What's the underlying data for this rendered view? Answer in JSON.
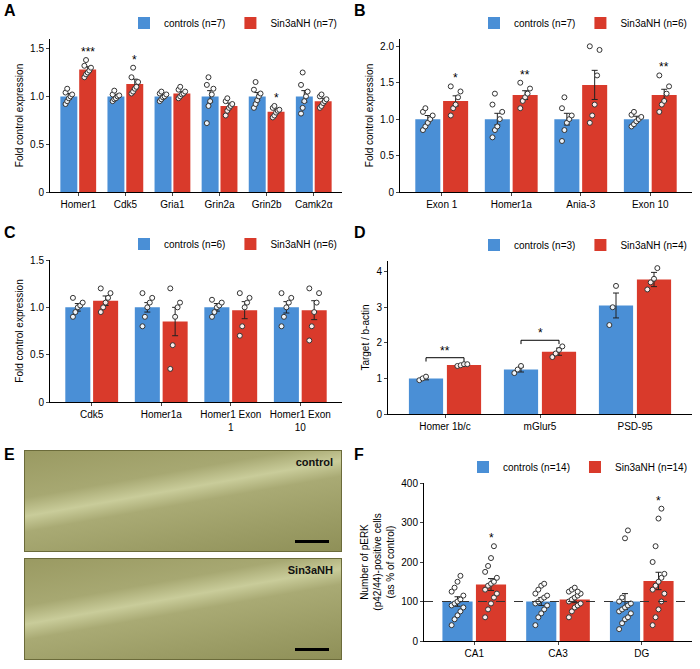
{
  "chart_data": [
    {
      "label": "A",
      "type": "bar",
      "y_label": "Fold control expression",
      "grid": false,
      "legend": "top",
      "categories": [
        "Homer1",
        "Cdk5",
        "Gria1",
        "Grin2a",
        "Grin2b",
        "Camk2α"
      ],
      "ylim": [
        0,
        1.6
      ],
      "yticks": [
        0,
        0.5,
        {
          "value": 1,
          "label": "1.0"
        },
        1.5
      ],
      "series": [
        {
          "name": "controls (n=7)",
          "color": "#4a8fd6",
          "values": [
            1.0,
            1.0,
            1.0,
            1.0,
            1.0,
            1.0
          ],
          "error": [
            0.03,
            0.02,
            0.02,
            0.06,
            0.04,
            0.06
          ],
          "points": [
            [
              0.92,
              0.95,
              0.98,
              1.0,
              1.02,
              1.04,
              1.08
            ],
            [
              0.95,
              0.97,
              0.98,
              1.0,
              1.01,
              1.02,
              1.06
            ],
            [
              0.95,
              0.97,
              0.99,
              1.0,
              1.02,
              1.03,
              1.05
            ],
            [
              0.72,
              0.9,
              0.95,
              1.02,
              1.08,
              1.12,
              1.2
            ],
            [
              0.88,
              0.92,
              0.96,
              1.0,
              1.03,
              1.07,
              1.15
            ],
            [
              0.82,
              0.88,
              0.95,
              1.0,
              1.05,
              1.12,
              1.25
            ]
          ],
          "annotations": [
            null,
            null,
            null,
            null,
            null,
            null
          ]
        },
        {
          "name": "Sin3aNH (n=7)",
          "color": "#d93a2b",
          "values": [
            1.28,
            1.13,
            1.03,
            0.9,
            0.84,
            0.95
          ],
          "error": [
            0.03,
            0.05,
            0.02,
            0.03,
            0.02,
            0.03
          ],
          "points": [
            [
              1.2,
              1.23,
              1.25,
              1.27,
              1.3,
              1.32,
              1.38
            ],
            [
              1.03,
              1.05,
              1.08,
              1.1,
              1.15,
              1.2,
              1.3
            ],
            [
              0.98,
              1.0,
              1.02,
              1.03,
              1.05,
              1.07,
              1.1
            ],
            [
              0.8,
              0.85,
              0.88,
              0.9,
              0.92,
              0.95,
              0.98
            ],
            [
              0.78,
              0.8,
              0.83,
              0.85,
              0.86,
              0.88,
              0.9
            ],
            [
              0.88,
              0.9,
              0.93,
              0.95,
              0.97,
              1.0,
              1.02
            ]
          ],
          "annotations": [
            "***",
            "*",
            null,
            null,
            "*",
            null
          ]
        }
      ]
    },
    {
      "label": "B",
      "type": "bar",
      "y_label": "Fold control expression",
      "grid": false,
      "legend": "top",
      "categories": [
        "Exon 1",
        "Homer1a",
        "Ania-3",
        "Exon 10"
      ],
      "ylim": [
        0,
        2.1
      ],
      "yticks": [
        0,
        0.5,
        {
          "value": 1,
          "label": "1.0"
        },
        1.5,
        {
          "value": 2,
          "label": "2.0"
        }
      ],
      "series": [
        {
          "name": "controls (n=7)",
          "color": "#4a8fd6",
          "values": [
            1.0,
            1.0,
            1.0,
            1.0
          ],
          "error": [
            0.05,
            0.08,
            0.08,
            0.04
          ],
          "points": [
            [
              0.85,
              0.9,
              0.95,
              1.0,
              1.05,
              1.1,
              1.15
            ],
            [
              0.75,
              0.85,
              0.9,
              1.0,
              1.1,
              1.2,
              1.35
            ],
            [
              0.7,
              0.85,
              0.95,
              1.0,
              1.05,
              1.15,
              1.3
            ],
            [
              0.9,
              0.93,
              0.97,
              1.0,
              1.03,
              1.06,
              1.1
            ]
          ],
          "annotations": [
            null,
            null,
            null,
            null
          ]
        },
        {
          "name": "Sin3aNH (n=6)",
          "color": "#d93a2b",
          "values": [
            1.25,
            1.33,
            1.47,
            1.33
          ],
          "error": [
            0.07,
            0.06,
            0.2,
            0.08
          ],
          "points": [
            [
              1.05,
              1.15,
              1.2,
              1.3,
              1.38,
              1.45
            ],
            [
              1.15,
              1.25,
              1.3,
              1.35,
              1.42,
              1.5
            ],
            [
              0.95,
              1.05,
              1.2,
              1.6,
              1.95,
              2.0
            ],
            [
              1.1,
              1.2,
              1.25,
              1.35,
              1.45,
              1.6
            ]
          ],
          "annotations": [
            "*",
            "**",
            null,
            "**"
          ]
        }
      ]
    },
    {
      "label": "C",
      "type": "bar",
      "y_label": "Fold control expression",
      "grid": false,
      "legend": "top",
      "categories": [
        "Cdk5",
        "Homer1a",
        "Homer1 Exon 1",
        "Homer1 Exon 10"
      ],
      "ylim": [
        0,
        1.5
      ],
      "yticks": [
        0,
        0.5,
        {
          "value": 1,
          "label": "1.0"
        },
        1.5
      ],
      "series": [
        {
          "name": "controls (n=6)",
          "color": "#4a8fd6",
          "values": [
            1.0,
            1.0,
            1.0,
            1.0
          ],
          "error": [
            0.04,
            0.05,
            0.04,
            0.06
          ],
          "points": [
            [
              0.9,
              0.95,
              1.0,
              1.02,
              1.05,
              1.1
            ],
            [
              0.8,
              0.9,
              1.0,
              1.05,
              1.1,
              1.15
            ],
            [
              0.9,
              0.95,
              1.0,
              1.02,
              1.05,
              1.08
            ],
            [
              0.8,
              0.9,
              1.0,
              1.05,
              1.1,
              1.15
            ]
          ],
          "annotations": [
            null,
            null,
            null,
            null
          ]
        },
        {
          "name": "Sin3aNH (n=6)",
          "color": "#d93a2b",
          "values": [
            1.07,
            0.85,
            0.97,
            0.97
          ],
          "error": [
            0.05,
            0.15,
            0.09,
            0.1
          ],
          "points": [
            [
              0.95,
              1.0,
              1.05,
              1.1,
              1.15,
              1.2
            ],
            [
              0.35,
              0.6,
              0.9,
              1.0,
              1.05,
              1.2
            ],
            [
              0.7,
              0.8,
              1.0,
              1.05,
              1.1,
              1.15
            ],
            [
              0.65,
              0.8,
              0.95,
              1.05,
              1.15,
              1.2
            ]
          ],
          "annotations": [
            null,
            null,
            null,
            null
          ]
        }
      ]
    },
    {
      "label": "D",
      "type": "bar",
      "y_label": "Target / b-actin",
      "grid": false,
      "legend": "top",
      "categories": [
        "Homer 1b/c",
        "mGlur5",
        "PSD-95"
      ],
      "ylim": [
        0,
        4.3
      ],
      "yticks": [
        0,
        1,
        2,
        3,
        4
      ],
      "series": [
        {
          "name": "controls (n=3)",
          "color": "#4a8fd6",
          "values": [
            1.0,
            1.25,
            3.05
          ],
          "error": [
            0.04,
            0.07,
            0.35
          ],
          "points": [
            [
              0.95,
              1.0,
              1.05
            ],
            [
              1.15,
              1.25,
              1.35
            ],
            [
              2.5,
              3.0,
              3.6
            ]
          ],
          "annotations": [
            null,
            null,
            null
          ]
        },
        {
          "name": "Sin3aNH (n=4)",
          "color": "#d93a2b",
          "values": [
            1.38,
            1.75,
            3.78
          ],
          "error": [
            0.03,
            0.1,
            0.2
          ],
          "points": [
            [
              1.35,
              1.37,
              1.4,
              1.4
            ],
            [
              1.6,
              1.7,
              1.8,
              1.9
            ],
            [
              3.5,
              3.7,
              3.8,
              4.1
            ]
          ],
          "annotations": [
            "**",
            "*",
            null
          ]
        }
      ]
    },
    {
      "label": "E",
      "type": "image",
      "captions": [
        "control",
        "Sin3aNH"
      ]
    },
    {
      "label": "F",
      "type": "bar",
      "y_label": "Number of pERK (p42/44)-positive cells (as % of control)",
      "grid": false,
      "legend": "top",
      "categories": [
        "CA1",
        "CA3",
        "DG"
      ],
      "ylim": [
        0,
        400
      ],
      "yticks": [
        0,
        100,
        200,
        300,
        400
      ],
      "reference_line": 100,
      "series": [
        {
          "name": "controls (n=14)",
          "color": "#4a8fd6",
          "values": [
            100,
            100,
            100
          ],
          "error": [
            12,
            10,
            20
          ],
          "points": [
            [
              40,
              55,
              65,
              75,
              85,
              90,
              95,
              100,
              105,
              115,
              125,
              135,
              150,
              165
            ],
            [
              40,
              60,
              70,
              80,
              90,
              95,
              100,
              105,
              110,
              115,
              120,
              130,
              140,
              145
            ],
            [
              30,
              45,
              55,
              60,
              70,
              75,
              80,
              85,
              90,
              95,
              100,
              110,
              260,
              280
            ]
          ],
          "annotations": [
            null,
            null,
            null
          ]
        },
        {
          "name": "Sin3aNH (n=14)",
          "color": "#d93a2b",
          "values": [
            143,
            105,
            152
          ],
          "error": [
            15,
            8,
            22
          ],
          "points": [
            [
              60,
              80,
              95,
              110,
              120,
              130,
              140,
              145,
              150,
              160,
              175,
              190,
              210,
              240
            ],
            [
              60,
              75,
              85,
              90,
              95,
              100,
              105,
              110,
              115,
              120,
              125,
              130,
              135,
              125
            ],
            [
              40,
              60,
              80,
              100,
              120,
              130,
              140,
              150,
              160,
              170,
              200,
              240,
              310,
              335
            ]
          ],
          "annotations": [
            "*",
            null,
            "*"
          ]
        }
      ]
    }
  ]
}
